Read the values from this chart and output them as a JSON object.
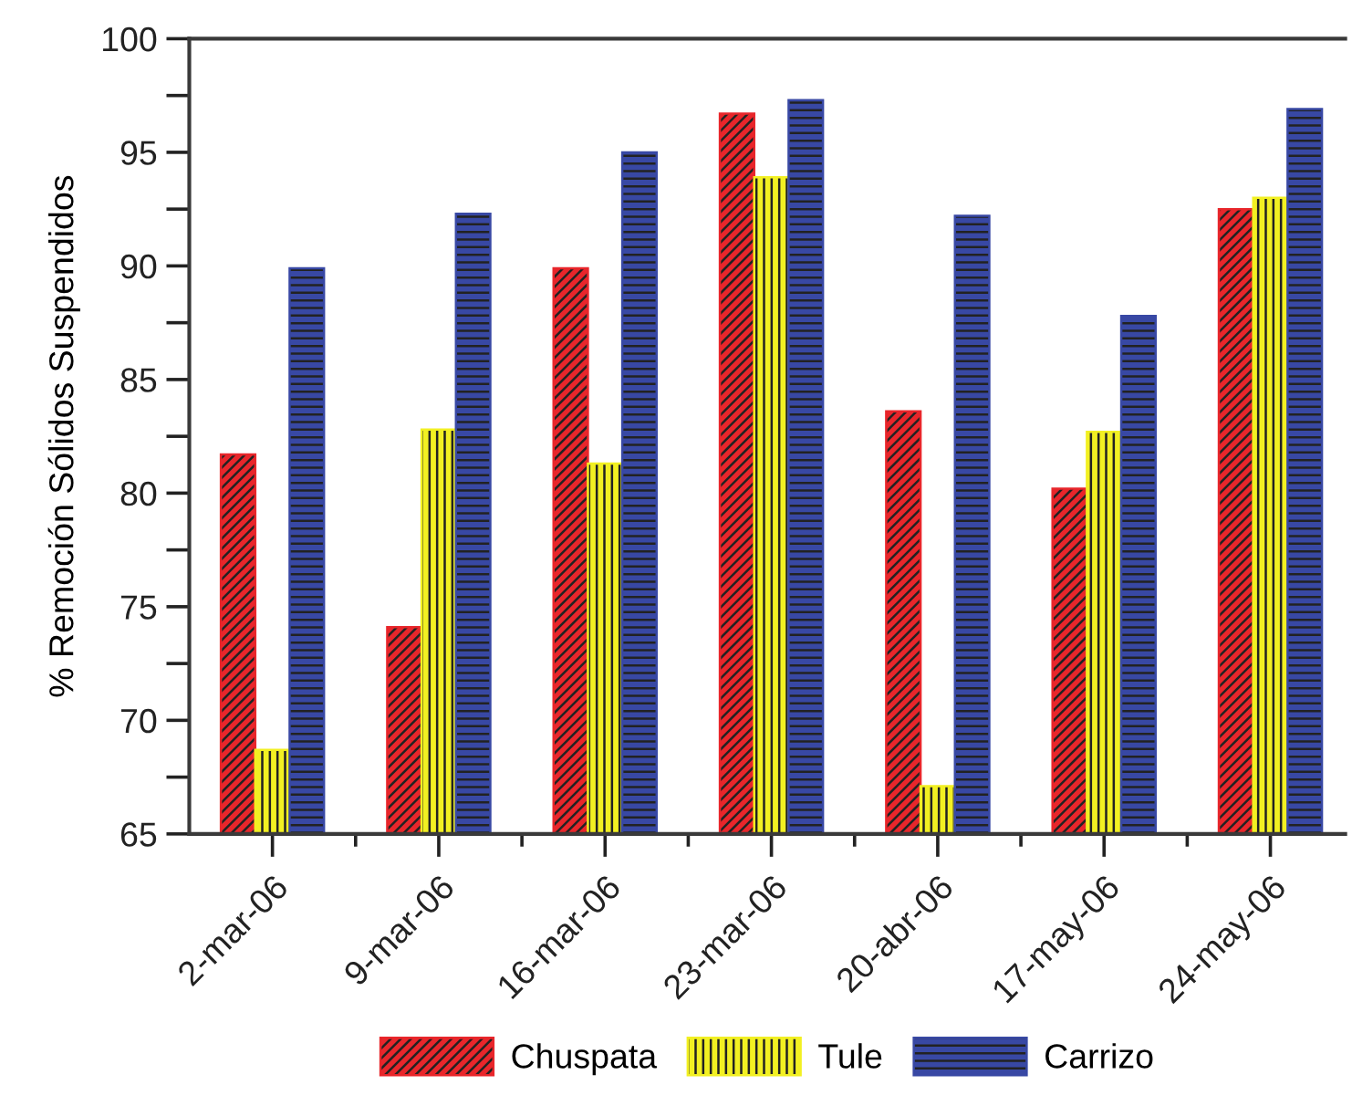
{
  "chart_data": {
    "type": "bar",
    "ylabel": "% Remoción Sólidos Suspendidos",
    "categories": [
      "2-mar-06",
      "9-mar-06",
      "16-mar-06",
      "23-mar-06",
      "20-abr-06",
      "17-may-06",
      "24-may-06"
    ],
    "series": [
      {
        "name": "Chuspata",
        "color": "#e8262b",
        "values": [
          81.7,
          74.1,
          89.9,
          96.7,
          83.6,
          80.2,
          92.5
        ]
      },
      {
        "name": "Tule",
        "color": "#f2f022",
        "values": [
          68.7,
          82.8,
          81.3,
          93.9,
          67.1,
          82.7,
          93.0
        ]
      },
      {
        "name": "Carrizo",
        "color": "#3848a4",
        "values": [
          89.9,
          92.3,
          95.0,
          97.3,
          92.2,
          87.8,
          96.9
        ]
      }
    ],
    "ylim": [
      65,
      100
    ],
    "yticks": [
      65,
      70,
      75,
      80,
      85,
      90,
      95,
      100
    ],
    "legend": "bottom"
  }
}
